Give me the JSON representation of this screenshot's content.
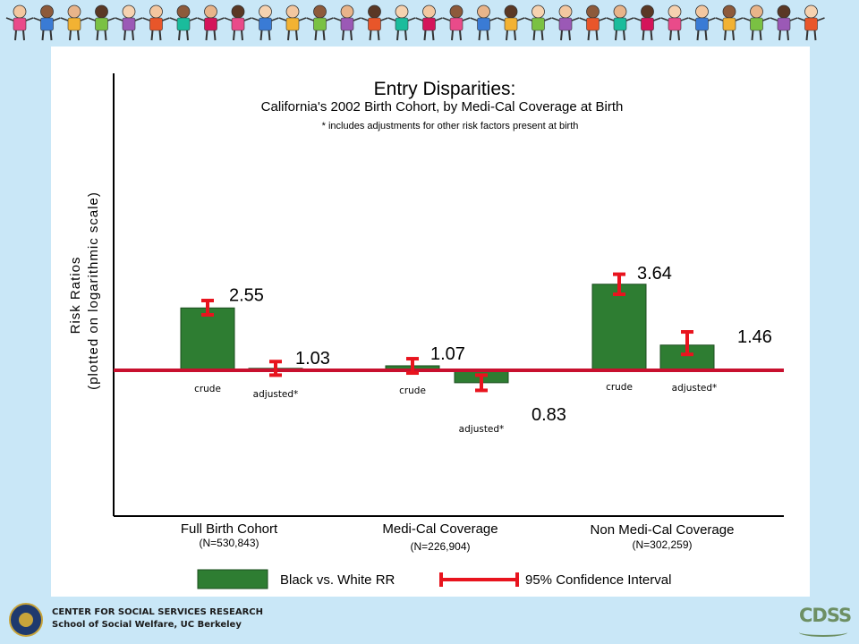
{
  "chart_data": {
    "type": "bar",
    "title": "Entry Disparities:",
    "subtitle": "California's 2002 Birth Cohort, by Medi-Cal Coverage at Birth",
    "note": "* includes adjustments for other risk factors present at birth",
    "ylabel_line1": "Risk Ratios",
    "ylabel_line2": "(plotted on logarithmic scale)",
    "yscale": "log",
    "baseline": 1,
    "ylim": [
      0.45,
      5
    ],
    "groups": [
      {
        "label": "Full Birth Cohort",
        "n_label": "(N=530,843)",
        "bars": [
          {
            "label": "crude",
            "value": 2.55,
            "value_label": "2.55",
            "ci": [
              2.3,
              2.85
            ]
          },
          {
            "label": "adjusted*",
            "value": 1.03,
            "value_label": "1.03",
            "ci": [
              0.93,
              1.14
            ]
          }
        ]
      },
      {
        "label": "Medi-Cal Coverage",
        "n_label": "(N=226,904)",
        "bars": [
          {
            "label": "crude",
            "value": 1.07,
            "value_label": "1.07",
            "ci": [
              0.96,
              1.19
            ]
          },
          {
            "label": "adjusted*",
            "value": 0.83,
            "value_label": "0.83",
            "ci": [
              0.74,
              0.93
            ]
          }
        ]
      },
      {
        "label": "Non Medi-Cal Coverage",
        "n_label": "(N=302,259)",
        "bars": [
          {
            "label": "crude",
            "value": 3.64,
            "value_label": "3.64",
            "ci": [
              3.13,
              4.23
            ]
          },
          {
            "label": "adjusted*",
            "value": 1.46,
            "value_label": "1.46",
            "ci": [
              1.27,
              1.78
            ]
          }
        ]
      }
    ],
    "legend": [
      {
        "label": "Black vs. White RR",
        "kind": "bar"
      },
      {
        "label": "95% Confidence Interval",
        "kind": "interval"
      }
    ],
    "legend_position": "bottom",
    "grid": false
  },
  "colors": {
    "bar_fill": "#2e7d32",
    "bar_stroke": "#1b4d1e",
    "error_bar": "#e8141e",
    "baseline": "#c8102e",
    "axis": "#000000"
  },
  "footer": {
    "org_line1": "CENTER FOR SOCIAL SERVICES RESEARCH",
    "org_line2": "School of Social Welfare, UC Berkeley",
    "logo_text": "CDSS"
  },
  "decorations": {
    "banner": "children-holding-hands-banner",
    "seal": "university-seal-icon"
  }
}
